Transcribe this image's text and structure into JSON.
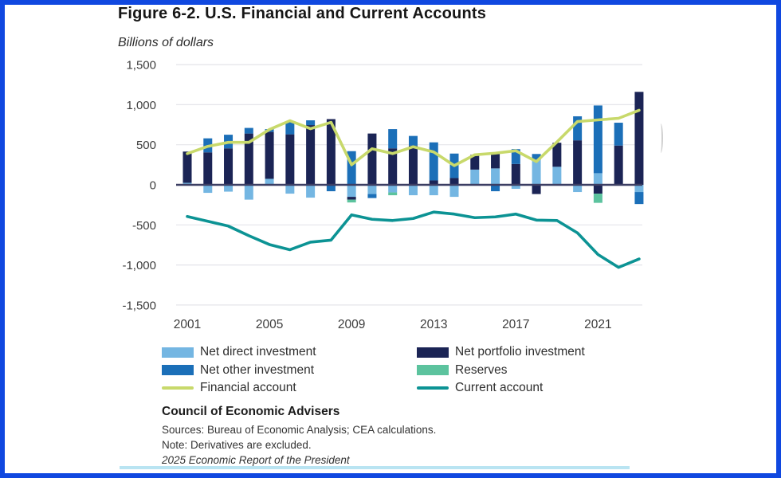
{
  "frame": {
    "border_color": "#1048e0"
  },
  "header": {
    "title": "Figure 6-2. U.S. Financial and Current Accounts",
    "units_label": "Billions of dollars"
  },
  "chart_data": {
    "type": "bar",
    "subtype": "stacked bars with overlay lines",
    "x": [
      2001,
      2002,
      2003,
      2004,
      2005,
      2006,
      2007,
      2008,
      2009,
      2010,
      2011,
      2012,
      2013,
      2014,
      2015,
      2016,
      2017,
      2018,
      2019,
      2020,
      2021,
      2022,
      2023
    ],
    "series": [
      {
        "name": "Net direct investment",
        "type": "bar",
        "color": "#74b6e2",
        "values": [
          25,
          -100,
          -85,
          -185,
          75,
          -110,
          -160,
          0,
          -150,
          -115,
          -95,
          -130,
          -130,
          -150,
          190,
          205,
          -50,
          310,
          225,
          -90,
          145,
          0,
          -90
        ]
      },
      {
        "name": "Net portfolio investment",
        "type": "bar",
        "color": "#1b2455",
        "values": [
          390,
          405,
          455,
          640,
          585,
          630,
          745,
          820,
          -35,
          640,
          455,
          490,
          55,
          85,
          185,
          190,
          260,
          -115,
          300,
          555,
          -110,
          490,
          1160
        ]
      },
      {
        "name": "Net other investment",
        "type": "bar",
        "color": "#1b6fb8",
        "values": [
          0,
          175,
          170,
          70,
          35,
          155,
          60,
          -80,
          420,
          -50,
          240,
          120,
          475,
          305,
          0,
          -80,
          185,
          75,
          0,
          300,
          845,
          285,
          -150
        ]
      },
      {
        "name": "Reserves",
        "type": "bar",
        "color": "#5cc39e",
        "values": [
          0,
          0,
          0,
          0,
          0,
          0,
          0,
          0,
          -35,
          0,
          -35,
          0,
          0,
          0,
          0,
          0,
          0,
          0,
          0,
          0,
          -115,
          0,
          0
        ]
      },
      {
        "name": "Financial account",
        "type": "line",
        "color": "#c8d96b",
        "values": [
          390,
          480,
          530,
          530,
          690,
          800,
          700,
          780,
          250,
          450,
          390,
          475,
          410,
          240,
          375,
          395,
          425,
          290,
          535,
          790,
          810,
          830,
          930
        ]
      },
      {
        "name": "Current account",
        "type": "line",
        "color": "#0c9394",
        "values": [
          -395,
          -455,
          -515,
          -635,
          -745,
          -810,
          -715,
          -690,
          -375,
          -430,
          -445,
          -420,
          -340,
          -365,
          -410,
          -400,
          -365,
          -440,
          -445,
          -600,
          -870,
          -1030,
          -925
        ]
      }
    ],
    "title": "Figure 6-2. U.S. Financial and Current Accounts",
    "ylabel": "Billions of dollars",
    "ylim": [
      -1500,
      1500
    ],
    "yticks": [
      1500,
      1000,
      500,
      0,
      -500,
      -1000,
      -1500
    ],
    "ytick_labels": [
      "1,500",
      "1,000",
      "500",
      "0",
      "-500",
      "-1,000",
      "-1,500"
    ],
    "xticks": [
      2001,
      2005,
      2009,
      2013,
      2017,
      2021
    ],
    "grid": true,
    "legend_position": "bottom"
  },
  "footer": {
    "org": "Council of Economic Advisers",
    "sources": "Sources: Bureau of Economic Analysis; CEA calculations.",
    "note": "Note: Derivatives are excluded.",
    "report": "2025 Economic Report of the President"
  }
}
